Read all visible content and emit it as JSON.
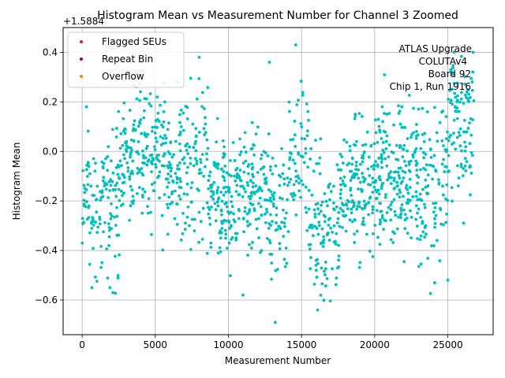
{
  "chart_data": {
    "type": "scatter",
    "title": "Histogram Mean vs Measurement Number for Channel 3 Zoomed",
    "xlabel": "Measurement Number",
    "ylabel": "Histogram Mean",
    "offset_label": "+1.5884",
    "xlim": [
      -1300,
      28100
    ],
    "ylim": [
      -0.74,
      0.5
    ],
    "xticks": [
      0,
      5000,
      10000,
      15000,
      20000,
      25000
    ],
    "yticks": [
      -0.6,
      -0.4,
      -0.2,
      0.0,
      0.2,
      0.4
    ],
    "ytick_labels": [
      "−0.6",
      "−0.4",
      "−0.2",
      "0.0",
      "0.2",
      "0.4"
    ],
    "grid": true,
    "legend": {
      "location": "top-left",
      "entries": [
        {
          "label": "Flagged SEUs",
          "color": "#d62728"
        },
        {
          "label": "Repeat Bin",
          "color": "#800080"
        },
        {
          "label": "Overflow",
          "color": "#ff7f0e"
        }
      ]
    },
    "annotation": {
      "location": "top-right",
      "lines": [
        "ATLAS Upgrade",
        "COLUTAv4",
        "Board 92",
        "Chip 1, Run 1916"
      ]
    },
    "series": [
      {
        "name": "Histogram Mean",
        "color": "#00bfbf",
        "count": 1500,
        "x_range": [
          0,
          26800
        ],
        "sample_points": [
          {
            "x": 13200,
            "y": -0.69
          },
          {
            "x": 14600,
            "y": 0.43
          },
          {
            "x": 2100,
            "y": -0.57
          },
          {
            "x": 16100,
            "y": -0.64
          },
          {
            "x": 11000,
            "y": -0.58
          },
          {
            "x": 6500,
            "y": 0.28
          },
          {
            "x": 8000,
            "y": 0.38
          },
          {
            "x": 12800,
            "y": 0.36
          },
          {
            "x": 25200,
            "y": 0.33
          },
          {
            "x": 1900,
            "y": -0.55
          },
          {
            "x": 24100,
            "y": -0.53
          },
          {
            "x": 25000,
            "y": -0.52
          }
        ],
        "segments": [
          {
            "x0": 0,
            "x1": 2600,
            "mean": -0.2,
            "sd": 0.14
          },
          {
            "x0": 2600,
            "x1": 5800,
            "mean": 0.0,
            "sd": 0.14
          },
          {
            "x0": 5800,
            "x1": 8600,
            "mean": -0.08,
            "sd": 0.14
          },
          {
            "x0": 8600,
            "x1": 12800,
            "mean": -0.17,
            "sd": 0.12
          },
          {
            "x0": 12800,
            "x1": 14000,
            "mean": -0.25,
            "sd": 0.15
          },
          {
            "x0": 14000,
            "x1": 15500,
            "mean": -0.02,
            "sd": 0.15
          },
          {
            "x0": 15500,
            "x1": 17600,
            "mean": -0.3,
            "sd": 0.14
          },
          {
            "x0": 17600,
            "x1": 20200,
            "mean": -0.15,
            "sd": 0.13
          },
          {
            "x0": 20200,
            "x1": 23000,
            "mean": -0.1,
            "sd": 0.14
          },
          {
            "x0": 23000,
            "x1": 25000,
            "mean": -0.15,
            "sd": 0.15
          },
          {
            "x0": 25000,
            "x1": 26800,
            "mean": 0.1,
            "sd": 0.15
          }
        ]
      },
      {
        "name": "Flagged SEUs",
        "color": "#d62728",
        "values": []
      },
      {
        "name": "Repeat Bin",
        "color": "#800080",
        "values": []
      },
      {
        "name": "Overflow",
        "color": "#ff7f0e",
        "values": []
      }
    ]
  }
}
